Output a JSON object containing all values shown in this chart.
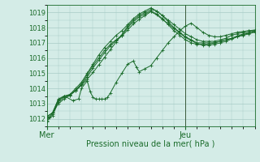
{
  "xlabel": "Pression niveau de la mer( hPa )",
  "ylim": [
    1011.5,
    1019.5
  ],
  "xlim": [
    0,
    36
  ],
  "yticks": [
    1012,
    1013,
    1014,
    1015,
    1016,
    1017,
    1018,
    1019
  ],
  "xtick_positions": [
    0,
    24
  ],
  "xtick_labels": [
    "Mer",
    "Jeu"
  ],
  "bg_color": "#d4ece7",
  "grid_color": "#a8cbc6",
  "line_color": "#1a6b2a",
  "vline_x": 24,
  "series": [
    [
      0.0,
      1011.8,
      0.5,
      1012.1,
      1.0,
      1012.4,
      2.0,
      1013.0,
      3.0,
      1013.3,
      4.0,
      1013.55,
      5.0,
      1013.85,
      6.0,
      1014.2,
      7.0,
      1014.6,
      8.0,
      1015.05,
      9.0,
      1015.55,
      10.0,
      1016.05,
      11.0,
      1016.55,
      12.0,
      1017.05,
      13.0,
      1017.55,
      14.0,
      1018.1,
      15.0,
      1018.5,
      16.0,
      1018.8,
      17.0,
      1019.0,
      18.0,
      1019.2,
      19.0,
      1019.1,
      20.0,
      1018.8,
      21.0,
      1018.5,
      22.0,
      1018.2,
      23.0,
      1017.9,
      24.0,
      1017.6,
      25.0,
      1017.4,
      26.0,
      1017.2,
      27.0,
      1017.1,
      28.0,
      1017.1,
      29.0,
      1017.1,
      30.0,
      1017.2,
      31.0,
      1017.3,
      32.0,
      1017.5,
      33.0,
      1017.6,
      34.0,
      1017.7,
      35.0,
      1017.8,
      36.0,
      1017.85
    ],
    [
      0.0,
      1011.9,
      1.0,
      1012.2,
      2.0,
      1013.1,
      3.0,
      1013.4,
      4.0,
      1013.6,
      5.0,
      1013.9,
      6.0,
      1014.3,
      7.0,
      1014.9,
      8.0,
      1015.5,
      9.0,
      1016.0,
      10.0,
      1016.5,
      11.0,
      1016.9,
      12.0,
      1017.2,
      13.0,
      1017.5,
      14.0,
      1018.0,
      15.0,
      1018.4,
      16.0,
      1018.7,
      17.0,
      1018.9,
      18.0,
      1019.1,
      19.0,
      1018.9,
      20.0,
      1018.6,
      21.0,
      1018.2,
      22.0,
      1017.8,
      23.0,
      1017.5,
      24.0,
      1017.2,
      25.0,
      1017.0,
      26.0,
      1016.9,
      27.0,
      1016.9,
      28.0,
      1016.9,
      29.0,
      1017.0,
      30.0,
      1017.1,
      31.0,
      1017.2,
      32.0,
      1017.3,
      33.0,
      1017.4,
      34.0,
      1017.5,
      35.0,
      1017.6,
      36.0,
      1017.7
    ],
    [
      0.0,
      1012.0,
      1.0,
      1012.3,
      2.0,
      1013.2,
      3.0,
      1013.5,
      4.5,
      1013.2,
      5.5,
      1013.3,
      6.0,
      1014.0,
      7.0,
      1014.5,
      7.5,
      1013.8,
      8.0,
      1013.4,
      8.5,
      1013.3,
      9.0,
      1013.3,
      9.5,
      1013.3,
      10.0,
      1013.3,
      10.5,
      1013.4,
      11.0,
      1013.7,
      12.0,
      1014.4,
      13.0,
      1015.0,
      14.0,
      1015.6,
      15.0,
      1015.8,
      15.5,
      1015.4,
      16.0,
      1015.1,
      17.0,
      1015.3,
      18.0,
      1015.5,
      19.0,
      1016.0,
      20.0,
      1016.5,
      21.0,
      1017.0,
      22.0,
      1017.4,
      23.0,
      1017.8,
      24.0,
      1018.1,
      25.0,
      1018.3,
      26.0,
      1018.0,
      27.0,
      1017.7,
      28.0,
      1017.5,
      29.0,
      1017.4,
      30.0,
      1017.4,
      31.0,
      1017.5,
      32.0,
      1017.6,
      33.0,
      1017.7,
      34.0,
      1017.75,
      35.0,
      1017.8,
      36.0,
      1017.8
    ],
    [
      0.0,
      1012.1,
      1.0,
      1012.4,
      2.0,
      1013.3,
      3.0,
      1013.5,
      4.0,
      1013.6,
      5.0,
      1014.0,
      6.0,
      1014.4,
      7.0,
      1015.0,
      8.0,
      1015.6,
      9.0,
      1016.2,
      10.0,
      1016.7,
      11.0,
      1017.1,
      12.0,
      1017.5,
      13.0,
      1017.8,
      14.0,
      1018.2,
      15.0,
      1018.6,
      16.0,
      1018.9,
      17.0,
      1019.1,
      18.0,
      1019.3,
      19.0,
      1019.1,
      20.0,
      1018.8,
      21.0,
      1018.4,
      22.0,
      1018.0,
      23.0,
      1017.7,
      24.0,
      1017.4,
      25.0,
      1017.2,
      26.0,
      1017.0,
      27.0,
      1017.0,
      28.0,
      1017.0,
      29.0,
      1017.0,
      30.0,
      1017.1,
      31.0,
      1017.2,
      32.0,
      1017.3,
      33.0,
      1017.45,
      34.0,
      1017.6,
      35.0,
      1017.7,
      36.0,
      1017.8
    ],
    [
      0.0,
      1012.15,
      1.0,
      1012.4,
      2.0,
      1013.25,
      3.0,
      1013.45,
      4.0,
      1013.55,
      5.0,
      1013.85,
      6.0,
      1014.25,
      7.0,
      1014.75,
      8.0,
      1015.35,
      9.0,
      1015.85,
      10.0,
      1016.35,
      11.0,
      1016.8,
      12.0,
      1017.15,
      13.0,
      1017.45,
      14.0,
      1017.85,
      15.0,
      1018.25,
      16.0,
      1018.55,
      17.0,
      1018.8,
      18.0,
      1019.05,
      19.0,
      1018.85,
      20.0,
      1018.55,
      21.0,
      1018.25,
      22.0,
      1017.95,
      23.0,
      1017.65,
      24.0,
      1017.35,
      25.0,
      1017.15,
      26.0,
      1016.95,
      27.0,
      1016.85,
      28.0,
      1016.85,
      29.0,
      1016.9,
      30.0,
      1017.0,
      31.0,
      1017.1,
      32.0,
      1017.25,
      33.0,
      1017.4,
      34.0,
      1017.55,
      35.0,
      1017.65,
      36.0,
      1017.75
    ]
  ]
}
